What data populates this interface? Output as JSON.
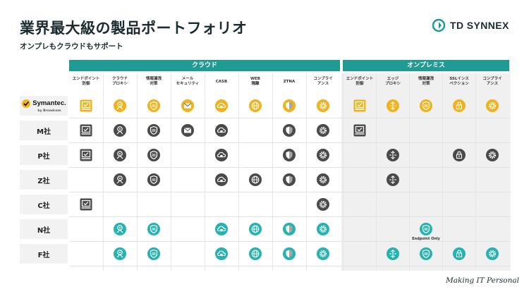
{
  "title": "業界最大級の製品ポートフォリオ",
  "subtitle": "オンプレもクラウドもサポート",
  "logo": {
    "text": "TD SYNNEX"
  },
  "tagline": "Making IT Personal",
  "groups": {
    "cloud": "クラウド",
    "onprem": "オンプレミス"
  },
  "columns": [
    "エンドポイント\n防御",
    "クラウド\nプロキシ",
    "情報漏洩\n対策",
    "メール\nセキュリティ",
    "CASB",
    "WEB\n隔離",
    "ZTNA",
    "コンプライ\nアンス",
    "エンドポイント\n防御",
    "エッジ\nプロキシ",
    "情報漏洩\n対策",
    "SSLインス\nペクション",
    "コンプライ\nアンス"
  ],
  "rows": [
    {
      "label": "Symantec.",
      "sublabel": "by Broadcom",
      "style": "yellow",
      "cells": [
        "laptop",
        "proxy",
        "shield",
        "mail",
        "cloudlock",
        "globe",
        "shieldalert",
        "gear",
        "laptop",
        "arrows",
        "shield",
        "lock",
        "gear"
      ]
    },
    {
      "label": "M社",
      "style": "dark",
      "cells": [
        "laptop",
        "proxy",
        "shield",
        "mail",
        "cloudlock",
        "",
        "shieldalert",
        "gear",
        "laptop",
        "",
        "",
        "",
        ""
      ]
    },
    {
      "label": "P社",
      "style": "dark",
      "cells": [
        "laptop",
        "proxy",
        "shield",
        "",
        "cloudlock",
        "",
        "shieldalert",
        "gear",
        "",
        "arrows",
        "",
        "lock",
        "gear"
      ]
    },
    {
      "label": "Z社",
      "style": "dark",
      "cells": [
        "",
        "proxy",
        "shield",
        "",
        "cloudlock",
        "globe",
        "shieldalert",
        "gear",
        "",
        "arrows",
        "",
        "",
        ""
      ]
    },
    {
      "label": "C社",
      "style": "dark",
      "cells": [
        "laptop",
        "",
        "",
        "",
        "",
        "",
        "",
        "gear",
        "",
        "",
        "",
        "",
        ""
      ]
    },
    {
      "label": "N社",
      "style": "teal",
      "cells": [
        "",
        "proxy",
        "shield",
        "",
        "cloudlock",
        "globe",
        "shieldalert",
        "gear",
        "",
        "",
        "shield",
        "",
        ""
      ]
    },
    {
      "label": "F社",
      "style": "teal",
      "cells": [
        "",
        "proxy",
        "shield",
        "",
        "cloudlock",
        "globe",
        "shieldalert",
        "gear",
        "",
        "arrows",
        "shield",
        "lock",
        "gear"
      ]
    }
  ],
  "notes": {
    "endpoint_only": "Endpoint Only"
  },
  "colors": {
    "teal": "#1e9b93",
    "yellow": "#f2b21b",
    "dark": "#4a4a4a",
    "icon_teal": "#25b3b1"
  }
}
